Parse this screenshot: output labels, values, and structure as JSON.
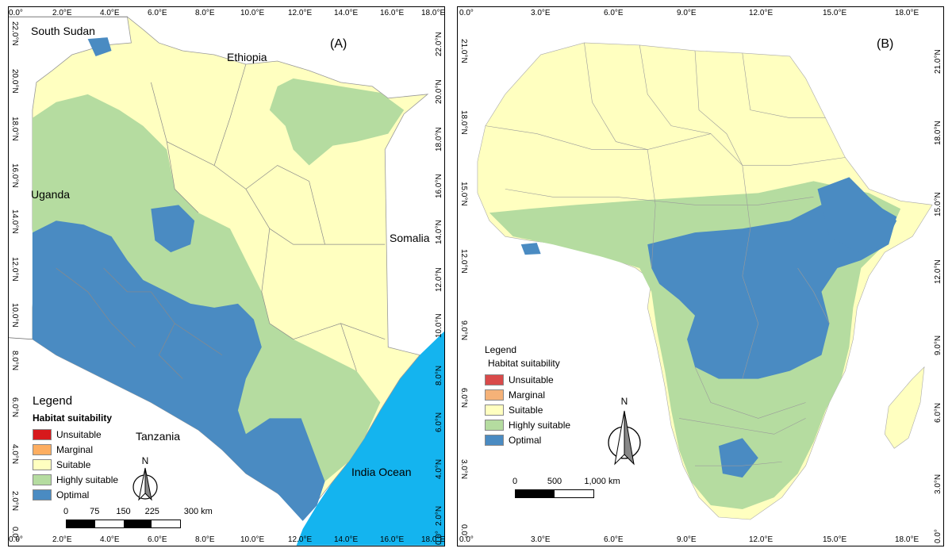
{
  "colors": {
    "unsuitable": "#d7191c",
    "marginal": "#fdae61",
    "suitable": "#ffffc0",
    "highly_suitable": "#b5dca0",
    "optimal": "#4a8bc2",
    "ocean": "#14b4ef"
  },
  "panel_a": {
    "letter": "(A)",
    "countries": {
      "south_sudan": "South Sudan",
      "ethiopia": "Ethiopia",
      "uganda": "Uganda",
      "somalia": "Somalia",
      "tanzania": "Tanzania",
      "ocean": "India Ocean"
    },
    "legend": {
      "title": "Legend",
      "subtitle": "Habitat suitability",
      "items": [
        "Unsuitable",
        "Marginal",
        "Suitable",
        "Highly suitable",
        "Optimal"
      ]
    },
    "north": "N",
    "scale": {
      "labels": [
        "0",
        "75",
        "150",
        "225",
        "300 km"
      ]
    },
    "top_ticks": [
      "0.0°",
      "2.0°E",
      "4.0°E",
      "6.0°E",
      "8.0°E",
      "10.0°E",
      "12.0°E",
      "14.0°E",
      "16.0°E",
      "18.0°E"
    ],
    "bottom_ticks": [
      "0.0°",
      "2.0°E",
      "4.0°E",
      "6.0°E",
      "8.0°E",
      "10.0°E",
      "12.0°E",
      "14.0°E",
      "16.0°E",
      "18.0°E"
    ],
    "left_ticks": [
      "22.0°N",
      "20.0°N",
      "18.0°N",
      "16.0°N",
      "14.0°N",
      "12.0°N",
      "10.0°N",
      "8.0°N",
      "6.0°N",
      "4.0°N",
      "2.0°N",
      "0.0°"
    ],
    "right_ticks": [
      "22.0°N",
      "20.0°N",
      "18.0°N",
      "16.0°N",
      "14.0°N",
      "12.0°N",
      "10.0°N",
      "8.0°N",
      "6.0°N",
      "4.0°N",
      "2.0°N",
      "0.0°"
    ]
  },
  "panel_b": {
    "letter": "(B)",
    "legend": {
      "title": "Legend",
      "subtitle": "Habitat suitability",
      "items": [
        "Unsuitable",
        "Marginal",
        "Suitable",
        "Highly suitable",
        "Optimal"
      ]
    },
    "north": "N",
    "scale": {
      "labels": [
        "0",
        "500",
        "1,000 km"
      ]
    },
    "top_ticks": [
      "0.0°",
      "3.0°E",
      "6.0°E",
      "9.0°E",
      "12.0°E",
      "15.0°E",
      "18.0°E"
    ],
    "bottom_ticks": [
      "0.0°",
      "3.0°E",
      "6.0°E",
      "9.0°E",
      "12.0°E",
      "15.0°E",
      "18.0°E"
    ],
    "left_ticks": [
      "21.0°N",
      "18.0°N",
      "15.0°N",
      "12.0°N",
      "9.0°N",
      "6.0°N",
      "3.0°N",
      "0.0°"
    ],
    "right_ticks": [
      "21.0°N",
      "18.0°N",
      "15.0°N",
      "12.0°N",
      "9.0°N",
      "6.0°N",
      "3.0°N",
      "0.0°"
    ]
  }
}
